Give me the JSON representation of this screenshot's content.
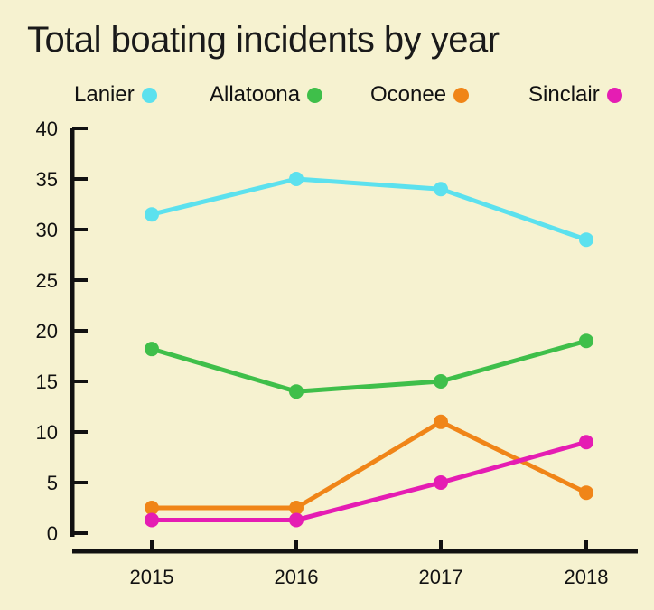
{
  "chart_data": {
    "type": "line",
    "title": "Total boating incidents by year",
    "x": [
      "2015",
      "2016",
      "2017",
      "2018"
    ],
    "ylim": [
      0,
      40
    ],
    "yticks": [
      0,
      5,
      10,
      15,
      20,
      25,
      30,
      35,
      40
    ],
    "grid": false,
    "legend_position": "top",
    "series": [
      {
        "name": "Lanier",
        "color": "#5ce1ee",
        "values": [
          31.5,
          35,
          34,
          29
        ]
      },
      {
        "name": "Allatoona",
        "color": "#3fbf4a",
        "values": [
          18.2,
          14,
          15,
          19
        ]
      },
      {
        "name": "Oconee",
        "color": "#f08518",
        "values": [
          2.5,
          2.5,
          11,
          4
        ]
      },
      {
        "name": "Sinclair",
        "color": "#e51db3",
        "values": [
          1.3,
          1.3,
          5,
          9
        ]
      }
    ]
  }
}
